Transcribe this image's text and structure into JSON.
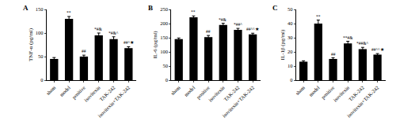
{
  "chart_data": [
    {
      "type": "bar",
      "title": "A",
      "y_label": "TNF-α (pg/ml)",
      "categories": [
        "sham",
        "model",
        "positive",
        "isovitexin",
        "TAK-242",
        "isovitexin+TAK-242"
      ],
      "values": [
        45,
        130,
        50,
        95,
        87,
        68
      ],
      "errors": [
        3,
        5,
        3,
        5,
        5,
        3
      ],
      "significance": [
        "",
        "**",
        "##",
        "*#&",
        "*#&^",
        "##^★"
      ],
      "color": "#000000",
      "ylim": [
        0,
        150
      ],
      "yticks": [
        0,
        50,
        100,
        150
      ],
      "grid": false
    },
    {
      "type": "bar",
      "title": "B",
      "y_label": "IL-6 (pg/ml)",
      "categories": [
        "sham",
        "model",
        "positive",
        "isovitexin",
        "TAK-242",
        "isovitexin+TAK-242"
      ],
      "values": [
        145,
        222,
        152,
        195,
        178,
        162
      ],
      "errors": [
        4,
        5,
        6,
        6,
        5,
        4
      ],
      "significance": [
        "",
        "**",
        "##",
        "*#&",
        "*##^",
        "##^^★"
      ],
      "color": "#000000",
      "ylim": [
        0,
        250
      ],
      "yticks": [
        0,
        50,
        100,
        150,
        200,
        250
      ],
      "grid": false
    },
    {
      "type": "bar",
      "title": "C",
      "y_label": "IL-1β (pg/ml)",
      "categories": [
        "sham",
        "model",
        "positive",
        "isovitexin",
        "TAK-242",
        "isovitexin+TAK-242"
      ],
      "values": [
        13,
        40,
        15,
        26,
        22,
        18
      ],
      "errors": [
        0.7,
        2.5,
        0.8,
        1.5,
        1.2,
        0.8
      ],
      "significance": [
        "",
        "**",
        "##",
        "**#&",
        "*##&^",
        "##^^★"
      ],
      "color": "#000000",
      "ylim": [
        0,
        50
      ],
      "yticks": [
        0,
        10,
        20,
        30,
        40,
        50
      ],
      "grid": false
    }
  ]
}
